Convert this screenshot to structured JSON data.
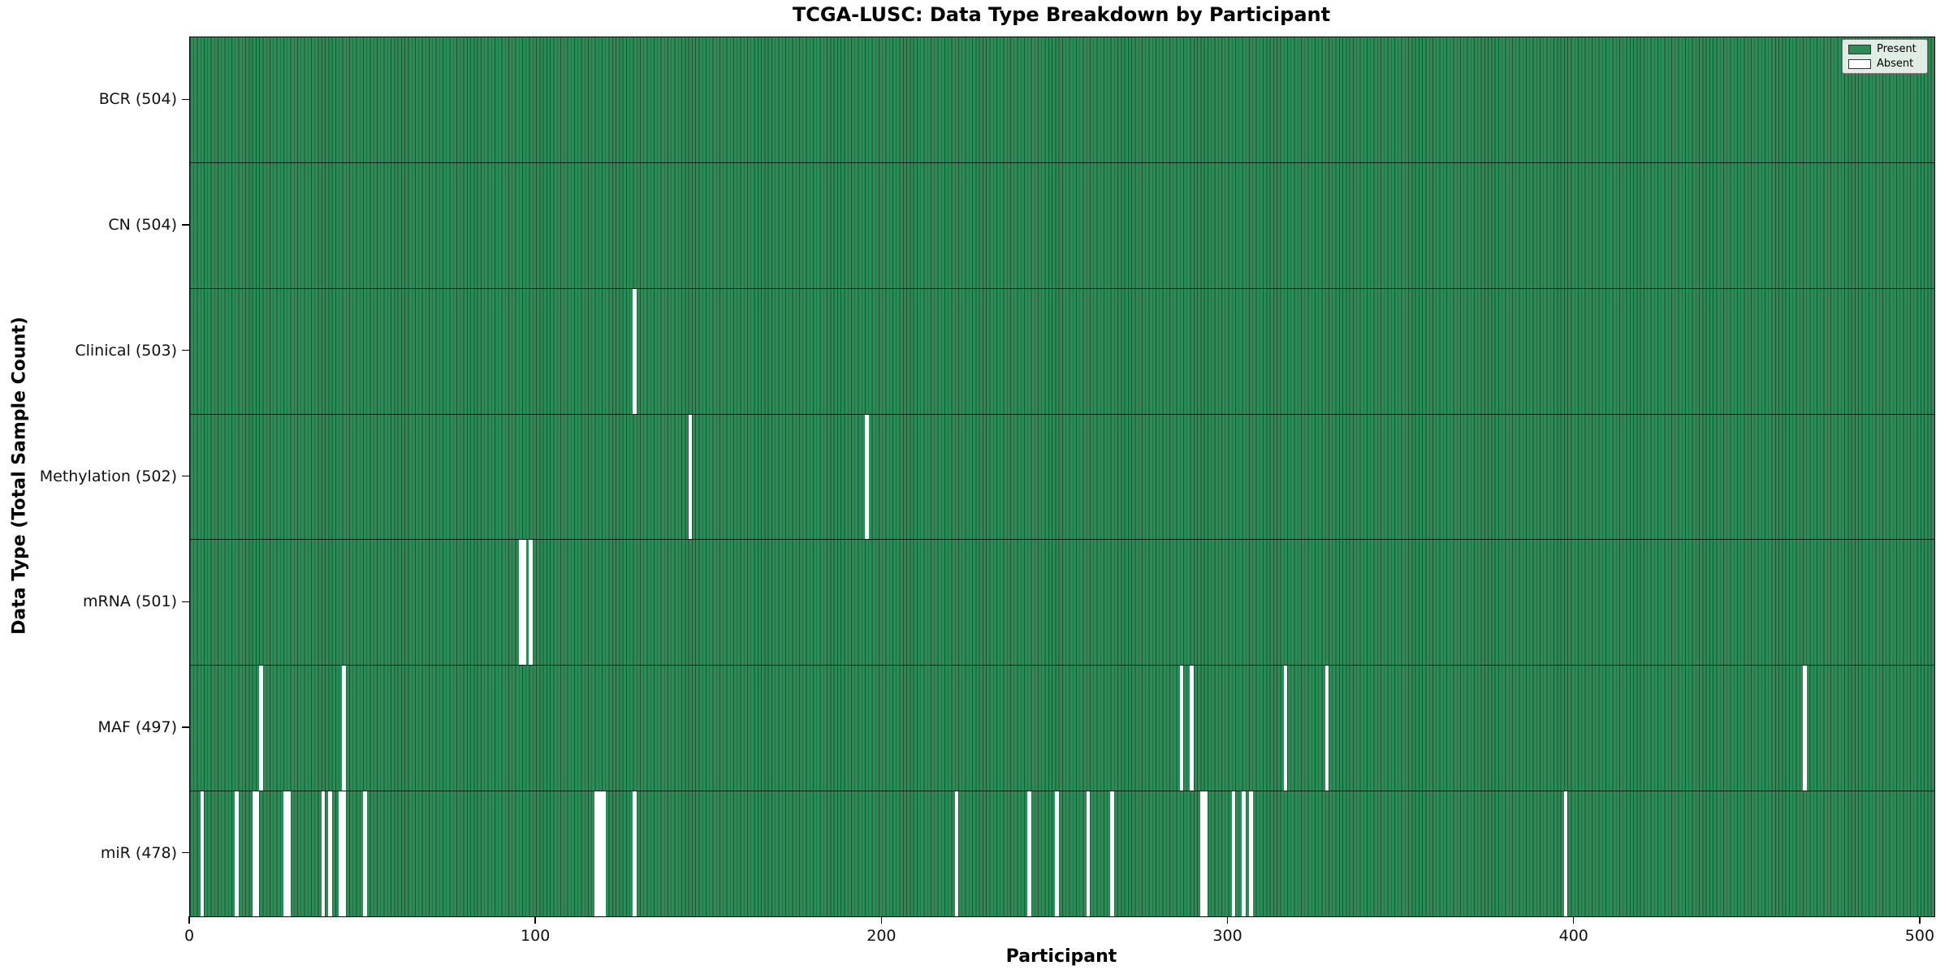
{
  "chart_data": {
    "type": "heatmap",
    "title": "TCGA-LUSC: Data Type Breakdown by Participant",
    "xlabel": "Participant",
    "ylabel": "Data Type (Total Sample Count)",
    "n_participants": 504,
    "x_ticks": [
      0,
      100,
      200,
      300,
      400,
      500
    ],
    "xlim": [
      0,
      504
    ],
    "grid": false,
    "legend_position": "upper right",
    "legend": [
      {
        "label": "Present",
        "color": "#2e8b57"
      },
      {
        "label": "Absent",
        "color": "#ffffff"
      }
    ],
    "colors": {
      "present_fill": "#2e8b57",
      "bar_edge": "#1c5233",
      "absent_fill": "#ffffff",
      "row_divider": "#000000"
    },
    "rows": [
      {
        "label": "BCR (504)",
        "data_type": "BCR",
        "total_samples": 504,
        "absent_participants": []
      },
      {
        "label": "CN (504)",
        "data_type": "CN",
        "total_samples": 504,
        "absent_participants": []
      },
      {
        "label": "Clinical (503)",
        "data_type": "Clinical",
        "total_samples": 503,
        "absent_participants": [
          128
        ]
      },
      {
        "label": "Methylation (502)",
        "data_type": "Methylation",
        "total_samples": 502,
        "absent_participants": [
          144,
          195
        ]
      },
      {
        "label": "mRNA (501)",
        "data_type": "mRNA",
        "total_samples": 501,
        "absent_participants": [
          95,
          96,
          98
        ]
      },
      {
        "label": "MAF (497)",
        "data_type": "MAF",
        "total_samples": 497,
        "absent_participants": [
          20,
          44,
          286,
          289,
          316,
          328,
          466
        ]
      },
      {
        "label": "miR (478)",
        "data_type": "miR",
        "total_samples": 478,
        "absent_participants": [
          3,
          13,
          18,
          19,
          27,
          28,
          38,
          40,
          43,
          44,
          50,
          117,
          118,
          119,
          128,
          221,
          242,
          250,
          259,
          266,
          292,
          293,
          301,
          304,
          306,
          397
        ]
      }
    ]
  }
}
